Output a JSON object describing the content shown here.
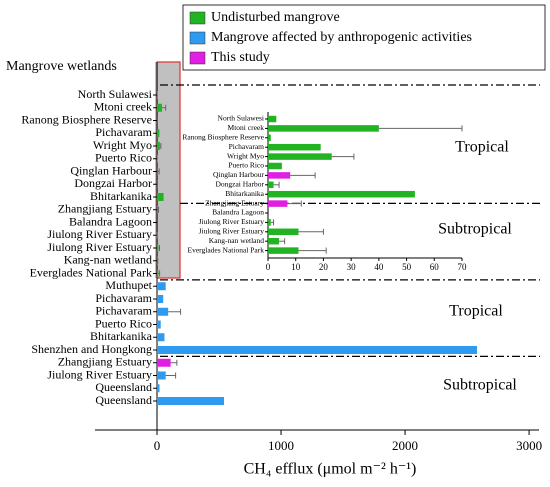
{
  "chart_data": [
    {
      "type": "bar",
      "orientation": "horizontal",
      "y_axis_label": "Mangrove wetlands",
      "x_axis_label": "CH₄ efflux (μmol m⁻² h⁻¹)",
      "categories": [
        "North Sulawesi",
        "Mtoni creek",
        "Ranong Biosphere Reserve",
        "Pichavaram",
        "Wright Myo",
        "Puerto Rico",
        "Qinglan Harbour",
        "Dongzai Harbor",
        "Bhitarkanika",
        "Zhangjiang Estuary",
        "Balandra Lagoon",
        "Jiulong River Estuary",
        "Jiulong River Estuary",
        "Kang-nan wetland",
        "Everglades National Park",
        "Muthupet",
        "Pichavaram",
        "Pichavaram",
        "Puerto Rico",
        "Bhitarkanika",
        "Shenzhen and Hongkong",
        "Zhangjiang Estuary",
        "Jiulong River Estuary",
        "Queensland",
        "Queensland"
      ],
      "series": [
        {
          "name": "Undisturbed mangrove",
          "color": "#22b322",
          "values": [
            3,
            40,
            1,
            19,
            23,
            5,
            null,
            2,
            53,
            null,
            0,
            1,
            11,
            4,
            11,
            null,
            null,
            null,
            null,
            null,
            null,
            null,
            null,
            null,
            null
          ],
          "errors": [
            null,
            30,
            null,
            null,
            8,
            null,
            null,
            2,
            null,
            null,
            null,
            1,
            9,
            2,
            10,
            null,
            null,
            null,
            null,
            null,
            null,
            null,
            null,
            null,
            null
          ]
        },
        {
          "name": "Mangrove affected by anthropogenic activities",
          "color": "#2e9af0",
          "values": [
            null,
            null,
            null,
            null,
            null,
            null,
            null,
            null,
            null,
            null,
            null,
            null,
            null,
            null,
            null,
            70,
            50,
            90,
            30,
            60,
            2580,
            null,
            70,
            20,
            540
          ],
          "errors": [
            null,
            null,
            null,
            null,
            null,
            null,
            null,
            null,
            null,
            null,
            null,
            null,
            null,
            null,
            null,
            null,
            null,
            100,
            null,
            null,
            null,
            null,
            80,
            null,
            null
          ]
        },
        {
          "name": "This study",
          "color": "#e020e0",
          "values": [
            null,
            null,
            null,
            null,
            null,
            null,
            8,
            null,
            null,
            7,
            null,
            null,
            null,
            null,
            null,
            null,
            null,
            null,
            null,
            null,
            null,
            110,
            null,
            null,
            null
          ],
          "errors": [
            null,
            null,
            null,
            null,
            null,
            null,
            9,
            null,
            null,
            5,
            null,
            null,
            null,
            null,
            null,
            null,
            null,
            null,
            null,
            null,
            null,
            50,
            null,
            null,
            null
          ]
        }
      ],
      "xlim": [
        -500,
        3080
      ],
      "xticks": [
        0,
        1000,
        2000,
        3000
      ],
      "annotations": [
        "Tropical",
        "Subtropical",
        "Tropical",
        "Subtropical"
      ],
      "legend": "top-right"
    },
    {
      "type": "bar",
      "orientation": "horizontal",
      "categories": [
        "North Sulawesi",
        "Mtoni creek",
        "Ranong Biosphere Reserve",
        "Pichavaram",
        "Wright Myo",
        "Puerto Rico",
        "Qinglan Harbour",
        "Dongzai Harbor",
        "Bhitarkanika",
        "Zhangjiang Estuary",
        "Balandra Lagoon",
        "Jiulong River Estuary",
        "Jiulong River Estuary",
        "Kang-nan wetland",
        "Everglades National Park"
      ],
      "values": [
        3,
        40,
        1,
        19,
        23,
        5,
        8,
        2,
        53,
        7,
        0,
        1,
        11,
        4,
        11
      ],
      "errors": [
        null,
        30,
        null,
        null,
        8,
        null,
        9,
        2,
        null,
        5,
        null,
        1,
        9,
        2,
        10
      ],
      "colors": [
        "#22b322",
        "#22b322",
        "#22b322",
        "#22b322",
        "#22b322",
        "#22b322",
        "#e020e0",
        "#22b322",
        "#22b322",
        "#e020e0",
        "#22b322",
        "#22b322",
        "#22b322",
        "#22b322",
        "#22b322"
      ],
      "xlim": [
        0,
        70
      ],
      "xticks": [
        0,
        10,
        20,
        30,
        40,
        50,
        60,
        70
      ]
    }
  ]
}
